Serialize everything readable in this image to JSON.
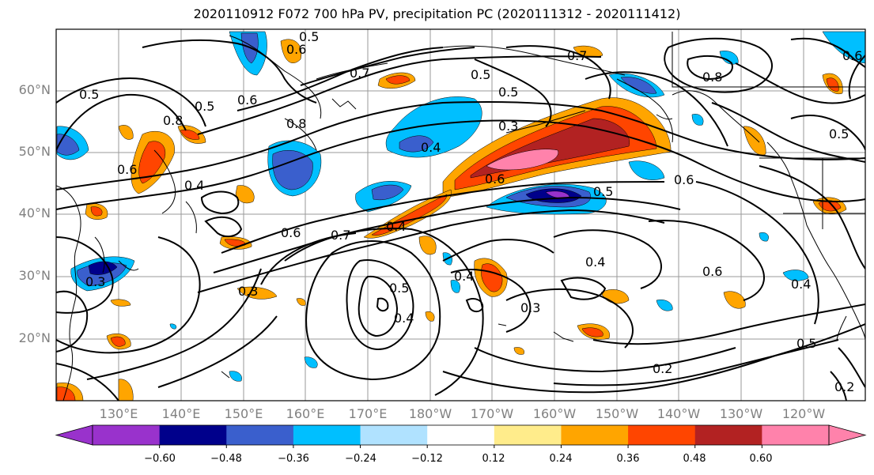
{
  "title": "2020110912 F072 700 hPa PV, precipitation PC (2020111312 - 2020111412)",
  "lat_labels": [
    "60°N",
    "50°N",
    "40°N",
    "30°N",
    "20°N"
  ],
  "lon_labels": [
    "130°E",
    "140°E",
    "150°E",
    "160°E",
    "170°E",
    "180°W",
    "170°W",
    "160°W",
    "150°W",
    "140°W",
    "130°W",
    "120°W"
  ],
  "colorbar": {
    "labels": [
      "−0.60",
      "−0.48",
      "−0.36",
      "−0.24",
      "−0.12",
      "0.12",
      "0.24",
      "0.36",
      "0.48",
      "0.60"
    ],
    "colors": [
      "#9932cc",
      "#00008b",
      "#3a5fcd",
      "#00bfff",
      "#b0e2ff",
      "#ffffff",
      "#ffec8b",
      "#ffa500",
      "#ff4500",
      "#b22222",
      "#ff82ab"
    ]
  },
  "contour_labels": [
    "0.5",
    "0.6",
    "0.7",
    "0.7",
    "0.6",
    "0.5",
    "0.5",
    "0.6",
    "0.8",
    "0.3",
    "0.4",
    "0.5",
    "0.8",
    "0.5",
    "0.6",
    "0.8",
    "0.4",
    "0.6",
    "0.5",
    "0.6",
    "0.7",
    "0.4",
    "0.6",
    "0.5",
    "0.4",
    "0.4",
    "0.6",
    "0.3",
    "0.3",
    "0.4",
    "0.3",
    "0.5",
    "0.2",
    "0.2",
    "0.4",
    "0.5"
  ]
}
